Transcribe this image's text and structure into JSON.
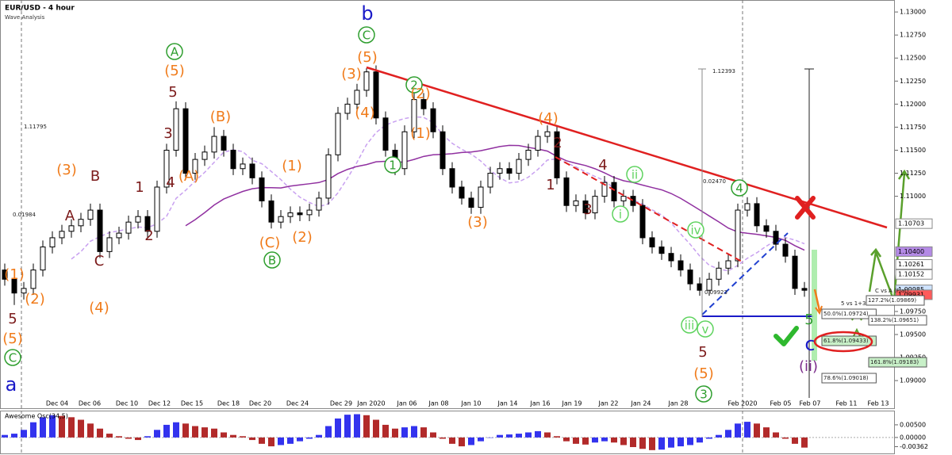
{
  "chart_data": {
    "type": "candlestick",
    "title": "EUR/USD - 4 hour",
    "subtitle": "Wave Analysis",
    "up_color": "#ffffff",
    "down_color": "#000000",
    "ylim": [
      1.087,
      1.1313
    ],
    "yticks": [
      {
        "value": 1.13,
        "label": "1.13000"
      },
      {
        "value": 1.1275,
        "label": "1.12750"
      },
      {
        "value": 1.125,
        "label": "1.12500"
      },
      {
        "value": 1.1225,
        "label": "1.12250"
      },
      {
        "value": 1.12,
        "label": "1.12000"
      },
      {
        "value": 1.1175,
        "label": "1.11750"
      },
      {
        "value": 1.115,
        "label": "1.11500"
      },
      {
        "value": 1.1125,
        "label": "1.11250"
      },
      {
        "value": 1.11,
        "label": "1.11000"
      },
      {
        "value": 1.0975,
        "label": "1.09750"
      },
      {
        "value": 1.095,
        "label": "1.09500"
      },
      {
        "value": 1.0925,
        "label": "1.09250"
      },
      {
        "value": 1.09,
        "label": "1.09000"
      }
    ],
    "x_labels": [
      "Dec 04",
      "Dec 06",
      "Dec 10",
      "Dec 12",
      "Dec 15",
      "Dec 18",
      "Dec 20",
      "Dec 24",
      "Dec 29",
      "Jan 2020",
      "Jan 06",
      "Jan 08",
      "Jan 10",
      "Jan 14",
      "Jan 16",
      "Jan 19",
      "Jan 22",
      "Jan 24",
      "Jan 28",
      "Feb 2020",
      "Feb 05",
      "Feb 07",
      "Feb 11",
      "Feb 13"
    ],
    "candles": [
      [
        1.102,
        1.1027,
        1.1003,
        1.101
      ],
      [
        1.101,
        1.1017,
        1.0982,
        1.0995
      ],
      [
        1.0995,
        1.1007,
        1.0988,
        1.1
      ],
      [
        1.1,
        1.1027,
        1.0993,
        1.102
      ],
      [
        1.102,
        1.1052,
        1.1013,
        1.1045
      ],
      [
        1.1045,
        1.1062,
        1.1038,
        1.1055
      ],
      [
        1.1055,
        1.1069,
        1.1048,
        1.1062
      ],
      [
        1.1062,
        1.1075,
        1.1055,
        1.1068
      ],
      [
        1.1068,
        1.1082,
        1.1061,
        1.1075
      ],
      [
        1.1075,
        1.1092,
        1.1068,
        1.1085
      ],
      [
        1.1085,
        1.1092,
        1.1033,
        1.104
      ],
      [
        1.104,
        1.1062,
        1.1033,
        1.1055
      ],
      [
        1.1055,
        1.1067,
        1.1048,
        1.106
      ],
      [
        1.106,
        1.1079,
        1.1053,
        1.1072
      ],
      [
        1.1072,
        1.1085,
        1.1065,
        1.1078
      ],
      [
        1.1078,
        1.1085,
        1.1055,
        1.1062
      ],
      [
        1.1062,
        1.1117,
        1.1055,
        1.111
      ],
      [
        1.111,
        1.1157,
        1.1103,
        1.115
      ],
      [
        1.115,
        1.1203,
        1.1143,
        1.1195
      ],
      [
        1.1195,
        1.1202,
        1.1118,
        1.1125
      ],
      [
        1.1125,
        1.1147,
        1.1118,
        1.114
      ],
      [
        1.114,
        1.1155,
        1.1133,
        1.1148
      ],
      [
        1.1148,
        1.1175,
        1.1141,
        1.1165
      ],
      [
        1.1165,
        1.1172,
        1.1143,
        1.115
      ],
      [
        1.115,
        1.1157,
        1.1123,
        1.113
      ],
      [
        1.113,
        1.1142,
        1.1123,
        1.1135
      ],
      [
        1.1135,
        1.1142,
        1.1113,
        1.112
      ],
      [
        1.112,
        1.1127,
        1.1088,
        1.1095
      ],
      [
        1.1095,
        1.1102,
        1.1065,
        1.1072
      ],
      [
        1.1072,
        1.1085,
        1.1065,
        1.1078
      ],
      [
        1.1078,
        1.1089,
        1.1071,
        1.1082
      ],
      [
        1.1082,
        1.1089,
        1.1073,
        1.108
      ],
      [
        1.108,
        1.1092,
        1.1073,
        1.1085
      ],
      [
        1.1085,
        1.1105,
        1.1078,
        1.1098
      ],
      [
        1.1098,
        1.1152,
        1.1091,
        1.1145
      ],
      [
        1.1145,
        1.1197,
        1.1138,
        1.119
      ],
      [
        1.119,
        1.1207,
        1.1183,
        1.12
      ],
      [
        1.12,
        1.1222,
        1.1193,
        1.1215
      ],
      [
        1.1215,
        1.1239,
        1.1208,
        1.1235
      ],
      [
        1.1235,
        1.1242,
        1.1178,
        1.1185
      ],
      [
        1.1185,
        1.1192,
        1.1143,
        1.115
      ],
      [
        1.115,
        1.1157,
        1.1123,
        1.113
      ],
      [
        1.113,
        1.1177,
        1.1123,
        1.117
      ],
      [
        1.117,
        1.1212,
        1.1163,
        1.1205
      ],
      [
        1.1205,
        1.1212,
        1.1188,
        1.1195
      ],
      [
        1.1195,
        1.1202,
        1.1163,
        1.117
      ],
      [
        1.117,
        1.1177,
        1.1123,
        1.113
      ],
      [
        1.113,
        1.1137,
        1.1103,
        1.111
      ],
      [
        1.111,
        1.1117,
        1.1091,
        1.1098
      ],
      [
        1.1098,
        1.1105,
        1.1081,
        1.1088
      ],
      [
        1.1088,
        1.1117,
        1.1081,
        1.111
      ],
      [
        1.111,
        1.1132,
        1.1103,
        1.1125
      ],
      [
        1.1125,
        1.1137,
        1.1118,
        1.113
      ],
      [
        1.113,
        1.1137,
        1.1118,
        1.1125
      ],
      [
        1.1125,
        1.1147,
        1.1118,
        1.114
      ],
      [
        1.114,
        1.1157,
        1.1133,
        1.115
      ],
      [
        1.115,
        1.1172,
        1.1143,
        1.1165
      ],
      [
        1.1165,
        1.1177,
        1.1158,
        1.117
      ],
      [
        1.117,
        1.1177,
        1.1113,
        1.112
      ],
      [
        1.112,
        1.1127,
        1.1083,
        1.109
      ],
      [
        1.109,
        1.1102,
        1.1083,
        1.1095
      ],
      [
        1.1095,
        1.1102,
        1.1075,
        1.1082
      ],
      [
        1.1082,
        1.1107,
        1.1075,
        1.11
      ],
      [
        1.11,
        1.1122,
        1.1093,
        1.1115
      ],
      [
        1.1115,
        1.1122,
        1.1088,
        1.1095
      ],
      [
        1.1095,
        1.1107,
        1.1088,
        1.11
      ],
      [
        1.11,
        1.1107,
        1.1083,
        1.109
      ],
      [
        1.109,
        1.1097,
        1.1048,
        1.1055
      ],
      [
        1.1055,
        1.1062,
        1.1038,
        1.1045
      ],
      [
        1.1045,
        1.1052,
        1.1031,
        1.1038
      ],
      [
        1.1038,
        1.1045,
        1.1023,
        1.103
      ],
      [
        1.103,
        1.1037,
        1.1013,
        1.102
      ],
      [
        1.102,
        1.1027,
        1.0998,
        1.1005
      ],
      [
        1.1005,
        1.1012,
        1.0992,
        1.0998
      ],
      [
        1.0998,
        1.1017,
        1.0992,
        1.101
      ],
      [
        1.101,
        1.1029,
        1.1003,
        1.1022
      ],
      [
        1.1022,
        1.1037,
        1.1015,
        1.103
      ],
      [
        1.103,
        1.1092,
        1.1023,
        1.1085
      ],
      [
        1.1085,
        1.1099,
        1.1078,
        1.1092
      ],
      [
        1.1092,
        1.1099,
        1.1061,
        1.1068
      ],
      [
        1.1068,
        1.1075,
        1.1055,
        1.1062
      ],
      [
        1.1062,
        1.1069,
        1.1041,
        1.1048
      ],
      [
        1.1048,
        1.1055,
        1.1028,
        1.1035
      ],
      [
        1.1035,
        1.1042,
        1.0993,
        1.1
      ],
      [
        1.1,
        1.1007,
        1.0991,
        1.0998
      ]
    ],
    "price_labels": [
      {
        "value": 1.10703,
        "label": "1.10703",
        "color": "#ffffff"
      },
      {
        "value": 1.104,
        "label": "1.10400",
        "color": "#b48ae6"
      },
      {
        "value": 1.10261,
        "label": "1.10261",
        "color": "#ffffff"
      },
      {
        "value": 1.10152,
        "label": "1.10152",
        "color": "#ffffff"
      },
      {
        "value": 1.09985,
        "label": "1.09985",
        "color": "#cfe3ff"
      },
      {
        "value": 1.09931,
        "label": "1.09931",
        "color": "#ff5a5a"
      }
    ],
    "wave_labels": [
      {
        "text": "(1)",
        "color": "#f07b1a"
      },
      {
        "text": "(2)",
        "color": "#f07b1a"
      },
      {
        "text": "5",
        "color": "#7b1a1a"
      },
      {
        "text": "(5)",
        "color": "#f07b1a"
      },
      {
        "text": "C",
        "color": "#2e9e2e",
        "circled": true
      },
      {
        "text": "a",
        "color": "#1a1ac8"
      },
      {
        "text": "(3)",
        "color": "#f07b1a"
      },
      {
        "text": "B",
        "color": "#7b1a1a"
      },
      {
        "text": "A",
        "color": "#7b1a1a"
      },
      {
        "text": "C",
        "color": "#7b1a1a"
      },
      {
        "text": "(4)",
        "color": "#f07b1a"
      },
      {
        "text": "1",
        "color": "#7b1a1a"
      },
      {
        "text": "2",
        "color": "#7b1a1a"
      },
      {
        "text": "3",
        "color": "#7b1a1a"
      },
      {
        "text": "4",
        "color": "#7b1a1a"
      },
      {
        "text": "5",
        "color": "#7b1a1a"
      },
      {
        "text": "(A)",
        "color": "#f07b1a"
      },
      {
        "text": "(5)",
        "color": "#f07b1a"
      },
      {
        "text": "A",
        "color": "#2e9e2e",
        "circled": true
      },
      {
        "text": "(B)",
        "color": "#f07b1a"
      },
      {
        "text": "(1)",
        "color": "#f07b1a"
      },
      {
        "text": "(C)",
        "color": "#f07b1a"
      },
      {
        "text": "B",
        "color": "#2e9e2e",
        "circled": true
      },
      {
        "text": "(2)",
        "color": "#f07b1a"
      },
      {
        "text": "(3)",
        "color": "#f07b1a"
      },
      {
        "text": "(4)",
        "color": "#f07b1a"
      },
      {
        "text": "(5)",
        "color": "#f07b1a"
      },
      {
        "text": "C",
        "color": "#2e9e2e",
        "circled": true
      },
      {
        "text": "b",
        "color": "#1a1ac8"
      },
      {
        "text": "1",
        "color": "#2e9e2e",
        "circled": true
      },
      {
        "text": "2",
        "color": "#2e9e2e",
        "circled": true
      },
      {
        "text": "(2)",
        "color": "#f07b1a"
      },
      {
        "text": "(1)",
        "color": "#f07b1a"
      },
      {
        "text": "(3)",
        "color": "#f07b1a"
      },
      {
        "text": "(4)",
        "color": "#f07b1a"
      },
      {
        "text": "2",
        "color": "#7b1a1a"
      },
      {
        "text": "1",
        "color": "#7b1a1a"
      },
      {
        "text": "4",
        "color": "#7b1a1a"
      },
      {
        "text": "3",
        "color": "#7b1a1a"
      },
      {
        "text": "ii",
        "color": "#5fd35f",
        "circled": true
      },
      {
        "text": "i",
        "color": "#5fd35f",
        "circled": true
      },
      {
        "text": "iv",
        "color": "#5fd35f",
        "circled": true
      },
      {
        "text": "iii",
        "color": "#5fd35f",
        "circled": true
      },
      {
        "text": "v",
        "color": "#5fd35f",
        "circled": true
      },
      {
        "text": "5",
        "color": "#7b1a1a"
      },
      {
        "text": "(5)",
        "color": "#f07b1a"
      },
      {
        "text": "3",
        "color": "#2e9e2e",
        "circled": true
      },
      {
        "text": "4",
        "color": "#2e9e2e",
        "circled": true
      },
      {
        "text": "5",
        "color": "#2e9e2e"
      },
      {
        "text": "c",
        "color": "#1a1ac8"
      },
      {
        "text": "(ii)",
        "color": "#7a2a8a"
      }
    ],
    "info_labels": [
      {
        "text": "1.12393"
      },
      {
        "text": "0.02470"
      },
      {
        "text": "0.09923"
      },
      {
        "text": "1.11795"
      },
      {
        "text": "0.01984"
      },
      {
        "text": "C vs A (Flat)"
      },
      {
        "text": "127.2%(1.09869)",
        "box": "#ffffff"
      },
      {
        "text": "5 vs 1+3"
      },
      {
        "text": "50.0%(1.09724)",
        "box": "#ffffff"
      },
      {
        "text": "138.2%(1.09651)",
        "box": "#ffffff"
      },
      {
        "text": "61.8%(1.09433)",
        "box": "#c8f0c8"
      },
      {
        "text": "161.8%(1.09183)",
        "box": "#c8f0c8"
      },
      {
        "text": "78.6%(1.09018)",
        "box": "#ffffff"
      }
    ],
    "oscillator": {
      "title": "Awesome Osc(34,5)",
      "rise_color": "#3333ee",
      "fall_color": "#b22a2a",
      "ylim": [
        -0.0063,
        0.0103
      ],
      "yticks": [
        {
          "value": 0.005,
          "label": "0.00500"
        },
        {
          "value": 0,
          "label": "0.00000"
        },
        {
          "value": -0.00362,
          "label": "-0.00362"
        }
      ],
      "values": [
        0.001,
        0.0015,
        0.003,
        0.006,
        0.008,
        0.0088,
        0.0085,
        0.008,
        0.007,
        0.0055,
        0.0035,
        0.0015,
        0.0005,
        -0.0005,
        -0.001,
        0.0005,
        0.003,
        0.005,
        0.006,
        0.0055,
        0.0045,
        0.004,
        0.0035,
        0.002,
        0.001,
        0.0005,
        -0.001,
        -0.0025,
        -0.0035,
        -0.003,
        -0.0025,
        -0.0015,
        -0.0005,
        0.001,
        0.0045,
        0.0075,
        0.009,
        0.0092,
        0.0088,
        0.007,
        0.005,
        0.0035,
        0.004,
        0.0045,
        0.004,
        0.002,
        -0.0005,
        -0.0025,
        -0.0035,
        -0.003,
        -0.0015,
        0.0,
        0.001,
        0.0012,
        0.0015,
        0.002,
        0.0025,
        0.002,
        0.0005,
        -0.0015,
        -0.0025,
        -0.0028,
        -0.002,
        -0.0015,
        -0.002,
        -0.003,
        -0.0038,
        -0.0045,
        -0.005,
        -0.0048,
        -0.004,
        -0.0035,
        -0.003,
        -0.002,
        -0.0005,
        0.001,
        0.003,
        0.0055,
        0.0062,
        0.0055,
        0.004,
        0.002,
        -0.0005,
        -0.0025,
        -0.004
      ]
    }
  }
}
